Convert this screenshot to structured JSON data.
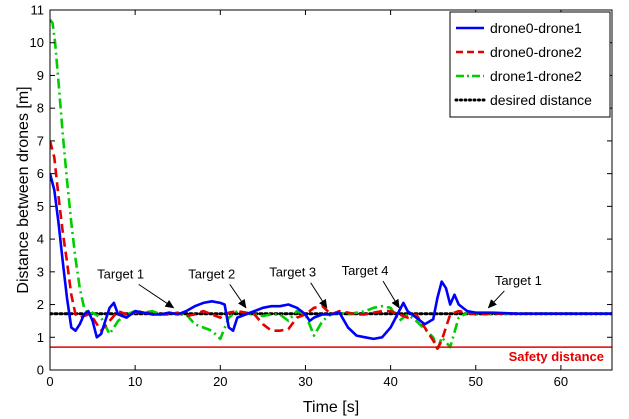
{
  "chart_data": {
    "type": "line",
    "xlabel": "Time [s]",
    "ylabel": "Distance between drones [m]",
    "xlim": [
      0,
      66
    ],
    "ylim": [
      0,
      11
    ],
    "xticks": [
      "0",
      "10",
      "20",
      "30",
      "40",
      "50",
      "60"
    ],
    "yticks": [
      "0",
      "1",
      "2",
      "3",
      "4",
      "5",
      "6",
      "7",
      "8",
      "9",
      "10",
      "11"
    ],
    "grid": false,
    "legend_position": "top-right",
    "series": [
      {
        "name": "drone0-drone1",
        "color": "#0000ff",
        "style": "solid",
        "x": [
          0,
          0.5,
          1,
          1.5,
          2,
          2.5,
          3,
          3.5,
          4,
          4.5,
          5,
          5.5,
          6,
          6.5,
          7,
          7.5,
          8,
          9,
          10,
          11,
          12,
          13,
          14,
          15,
          16,
          17,
          18,
          19,
          20,
          20.5,
          21,
          21.5,
          22,
          23,
          24,
          25,
          26,
          27,
          28,
          29,
          30,
          30.5,
          31,
          32,
          33,
          34,
          35,
          36,
          37,
          38,
          39,
          40,
          41,
          41.5,
          42,
          43,
          44,
          45,
          45.5,
          46,
          46.5,
          47,
          47.5,
          48,
          49,
          50,
          52,
          55,
          60,
          66
        ],
        "values": [
          6.0,
          5.5,
          4.5,
          3.3,
          2.2,
          1.3,
          1.2,
          1.4,
          1.7,
          1.8,
          1.5,
          1.0,
          1.1,
          1.5,
          1.9,
          2.05,
          1.7,
          1.6,
          1.8,
          1.75,
          1.7,
          1.7,
          1.75,
          1.7,
          1.8,
          1.95,
          2.05,
          2.1,
          2.05,
          2.0,
          1.3,
          1.2,
          1.6,
          1.7,
          1.8,
          1.9,
          1.95,
          1.95,
          2.0,
          1.9,
          1.7,
          1.5,
          1.6,
          1.7,
          1.7,
          1.75,
          1.3,
          1.05,
          1.0,
          0.95,
          1.0,
          1.3,
          1.8,
          2.05,
          1.8,
          1.6,
          1.4,
          1.55,
          2.2,
          2.7,
          2.5,
          2.0,
          2.3,
          2.0,
          1.8,
          1.75,
          1.75,
          1.72,
          1.72,
          1.72
        ]
      },
      {
        "name": "drone0-drone2",
        "color": "#e60000",
        "style": "dashed",
        "x": [
          0,
          0.5,
          1,
          1.5,
          2,
          2.5,
          3,
          3.5,
          4,
          4.5,
          5,
          6,
          7,
          8,
          9,
          10,
          11,
          12,
          13,
          14,
          15,
          16,
          17,
          18,
          19,
          20,
          21,
          22,
          23,
          24,
          25,
          26,
          27,
          28,
          29,
          30,
          31,
          32,
          33,
          34,
          35,
          36,
          37,
          38,
          39,
          40,
          41,
          42,
          43,
          44,
          45,
          45.5,
          46,
          47,
          48,
          49,
          50,
          52,
          55,
          60,
          66
        ],
        "values": [
          7.0,
          6.5,
          5.3,
          4.2,
          3.3,
          2.3,
          1.7,
          1.6,
          1.65,
          1.7,
          1.6,
          1.2,
          1.5,
          1.8,
          1.7,
          1.75,
          1.8,
          1.7,
          1.7,
          1.7,
          1.75,
          1.65,
          1.7,
          1.8,
          1.7,
          1.6,
          1.75,
          1.8,
          1.75,
          1.7,
          1.4,
          1.2,
          1.2,
          1.25,
          1.6,
          1.7,
          1.9,
          1.95,
          1.7,
          1.8,
          1.75,
          1.7,
          1.7,
          1.75,
          1.8,
          1.8,
          1.7,
          1.6,
          1.7,
          1.3,
          0.9,
          0.65,
          0.9,
          1.7,
          1.8,
          1.75,
          1.7,
          1.72,
          1.72,
          1.72,
          1.72
        ]
      },
      {
        "name": "drone1-drone2",
        "color": "#00cc00",
        "style": "dashdot",
        "x": [
          0,
          0.3,
          0.6,
          1,
          1.5,
          2,
          2.5,
          3,
          3.5,
          4,
          4.5,
          5,
          6,
          7,
          8,
          9,
          10,
          11,
          12,
          13,
          14,
          15,
          16,
          17,
          18,
          19,
          20,
          21,
          22,
          23,
          24,
          25,
          26,
          27,
          28,
          29,
          30,
          31,
          32,
          33,
          34,
          35,
          36,
          37,
          38,
          39,
          40,
          41,
          42,
          43,
          44,
          45,
          45.5,
          46,
          47,
          48,
          49,
          50,
          52,
          55,
          60,
          66
        ],
        "values": [
          10.7,
          10.6,
          10.0,
          8.8,
          7.2,
          5.8,
          4.5,
          3.4,
          2.5,
          1.9,
          1.7,
          1.75,
          1.6,
          1.1,
          1.5,
          1.7,
          1.8,
          1.75,
          1.8,
          1.7,
          1.75,
          1.7,
          1.7,
          1.4,
          1.3,
          1.2,
          0.95,
          1.6,
          1.8,
          1.75,
          1.7,
          1.65,
          1.7,
          1.7,
          1.5,
          1.8,
          1.7,
          1.05,
          1.5,
          1.7,
          1.75,
          1.7,
          1.75,
          1.8,
          1.9,
          1.95,
          1.9,
          1.5,
          1.7,
          1.5,
          1.25,
          1.0,
          0.6,
          1.0,
          0.7,
          1.6,
          1.75,
          1.7,
          1.72,
          1.72,
          1.72,
          1.72
        ]
      },
      {
        "name": "desired distance",
        "color": "#000000",
        "style": "dotted",
        "x": [
          0,
          66
        ],
        "values": [
          1.72,
          1.72
        ]
      }
    ],
    "reference_lines": [
      {
        "label": "Safety distance",
        "y": 0.7,
        "color": "#e60000"
      }
    ],
    "annotations": [
      {
        "text": "Target 1",
        "arrow_to": [
          14.5,
          1.72
        ],
        "text_at": [
          8.3,
          2.8
        ]
      },
      {
        "text": "Target 2",
        "arrow_to": [
          23.0,
          1.72
        ],
        "text_at": [
          19.0,
          2.8
        ]
      },
      {
        "text": "Target 3",
        "arrow_to": [
          32.5,
          1.72
        ],
        "text_at": [
          28.5,
          2.85
        ]
      },
      {
        "text": "Target 4",
        "arrow_to": [
          41.0,
          1.72
        ],
        "text_at": [
          37.0,
          2.9
        ]
      },
      {
        "text": "Target 1",
        "arrow_to": [
          51.5,
          1.72
        ],
        "text_at": [
          55.0,
          2.6
        ]
      }
    ]
  }
}
